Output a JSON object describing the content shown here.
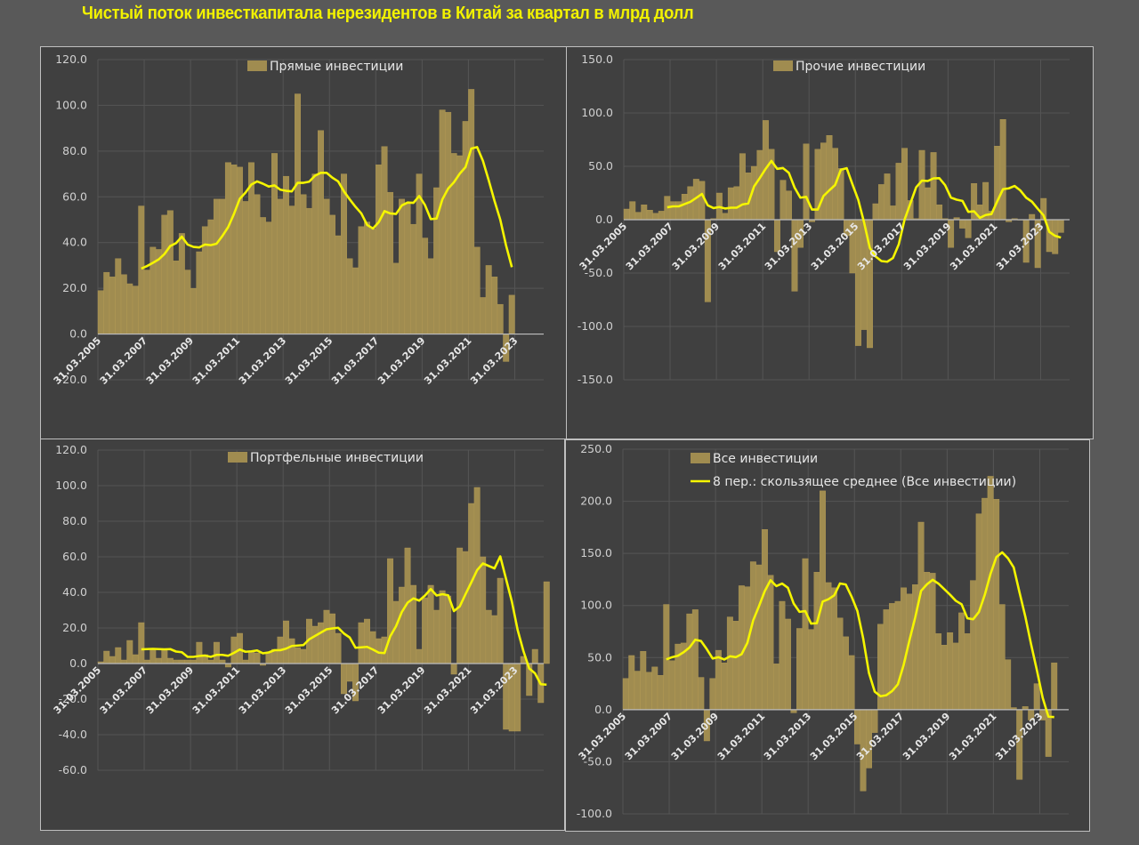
{
  "page": {
    "title": "Чистый поток инвесткапитала нерезидентов в Китай за квартал в млрд долл",
    "colors": {
      "background": "#595959",
      "panel": "#404040",
      "bar": "#a08c50",
      "line": "#f5f500",
      "grid": "#555555",
      "title": "#f2f200"
    }
  },
  "chart_data": [
    {
      "id": "direct",
      "type": "bar",
      "title": "",
      "legend": [
        "Прямые инвестиции"
      ],
      "legend_position": "top-center",
      "moving_average_period": 8,
      "ylim": [
        -20,
        120
      ],
      "yticks": [
        -20,
        0,
        20,
        40,
        60,
        80,
        100,
        120
      ],
      "ytick_labels": [
        "-20.0",
        "0.0",
        "20.0",
        "40.0",
        "60.0",
        "80.0",
        "100.0",
        "120.0"
      ],
      "xtick_labels": [
        "31.03.2005",
        "31.03.2007",
        "31.03.2009",
        "31.03.2011",
        "31.03.2013",
        "31.03.2015",
        "31.03.2017",
        "31.03.2019",
        "31.03.2021",
        "31.03.2023"
      ],
      "x_start": "31.03.2005",
      "frequency": "quarterly",
      "values": [
        19,
        27,
        25,
        33,
        26,
        22,
        21,
        56,
        28,
        38,
        37,
        52,
        54,
        32,
        44,
        28,
        20,
        36,
        47,
        50,
        59,
        59,
        75,
        74,
        73,
        58,
        75,
        61,
        51,
        49,
        79,
        59,
        69,
        56,
        105,
        61,
        55,
        70,
        89,
        59,
        52,
        43,
        70,
        33,
        29,
        47,
        49,
        46,
        74,
        82,
        62,
        31,
        59,
        57,
        48,
        70,
        42,
        33,
        64,
        98,
        97,
        79,
        78,
        93,
        107,
        38,
        16,
        30,
        25,
        13,
        -12,
        17
      ],
      "grid": true
    },
    {
      "id": "other",
      "type": "bar",
      "title": "",
      "legend": [
        "Прочие инвестиции"
      ],
      "legend_position": "top-center",
      "moving_average_period": 8,
      "ylim": [
        -150,
        150
      ],
      "yticks": [
        -150,
        -100,
        -50,
        0,
        50,
        100,
        150
      ],
      "ytick_labels": [
        "-150.0",
        "-100.0",
        "-50.0",
        "0.0",
        "50.0",
        "100.0",
        "150.0"
      ],
      "xtick_labels": [
        "31.03.2005",
        "31.03.2007",
        "31.03.2009",
        "31.03.2011",
        "31.03.2013",
        "31.03.2015",
        "31.03.2017",
        "31.03.2019",
        "31.03.2021",
        "31.03.2023"
      ],
      "x_start": "31.03.2005",
      "frequency": "quarterly",
      "values": [
        10,
        17,
        7,
        14,
        9,
        6,
        8,
        22,
        17,
        17,
        24,
        31,
        38,
        36,
        -77,
        1,
        25,
        6,
        30,
        31,
        62,
        44,
        50,
        65,
        93,
        66,
        -30,
        37,
        27,
        -67,
        -26,
        71,
        -2,
        66,
        72,
        79,
        67,
        48,
        -15,
        -50,
        -118,
        -103,
        -120,
        15,
        33,
        43,
        13,
        53,
        67,
        18,
        1,
        65,
        30,
        63,
        14,
        1,
        -26,
        2,
        -8,
        -17,
        34,
        14,
        35,
        8,
        69,
        94,
        -2,
        1,
        0,
        -40,
        5,
        -45,
        20,
        -30,
        -32,
        -12
      ],
      "grid": true
    },
    {
      "id": "portfolio",
      "type": "bar",
      "title": "",
      "legend": [
        "Портфельные инвестиции"
      ],
      "legend_position": "top-center",
      "moving_average_period": 8,
      "ylim": [
        -60,
        120
      ],
      "yticks": [
        -60,
        -40,
        -20,
        0,
        20,
        40,
        60,
        80,
        100,
        120
      ],
      "ytick_labels": [
        "-60.0",
        "-40.0",
        "-20.0",
        "0.0",
        "20.0",
        "40.0",
        "60.0",
        "80.0",
        "100.0",
        "120.0"
      ],
      "xtick_labels": [
        "31.03.2005",
        "31.03.2007",
        "31.03.2009",
        "31.03.2011",
        "31.03.2013",
        "31.03.2015",
        "31.03.2017",
        "31.03.2019",
        "31.03.2021",
        "31.03.2023"
      ],
      "x_start": "31.03.2005",
      "frequency": "quarterly",
      "values": [
        1,
        7,
        4,
        9,
        2,
        13,
        5,
        23,
        2,
        8,
        3,
        8,
        3,
        2,
        2,
        2,
        2,
        12,
        5,
        2,
        12,
        2,
        -2,
        15,
        17,
        2,
        7,
        6,
        -1,
        6,
        8,
        15,
        24,
        14,
        9,
        8,
        25,
        21,
        23,
        30,
        28,
        17,
        -17,
        -10,
        -21,
        23,
        25,
        18,
        14,
        15,
        59,
        35,
        43,
        65,
        44,
        8,
        37,
        44,
        30,
        41,
        38,
        -6,
        65,
        63,
        90,
        99,
        60,
        30,
        27,
        48,
        -37,
        -38,
        -38,
        4,
        -18,
        8,
        -22,
        46
      ],
      "grid": true
    },
    {
      "id": "all",
      "type": "bar",
      "title": "",
      "legend": [
        "Все инвестиции",
        "8 пер.: скользящее среднее (Все инвестиции)"
      ],
      "legend_position": "top-center",
      "moving_average_period": 8,
      "ylim": [
        -100,
        250
      ],
      "yticks": [
        -100,
        -50,
        0,
        50,
        100,
        150,
        200,
        250
      ],
      "ytick_labels": [
        "-100.0",
        "-50.0",
        "0.0",
        "50.0",
        "100.0",
        "150.0",
        "200.0",
        "250.0"
      ],
      "xtick_labels": [
        "31.03.2005",
        "31.03.2007",
        "31.03.2009",
        "31.03.2011",
        "31.03.2013",
        "31.03.2015",
        "31.03.2017",
        "31.03.2019",
        "31.03.2021",
        "31.03.2023"
      ],
      "x_start": "31.03.2005",
      "frequency": "quarterly",
      "values": [
        30,
        52,
        37,
        56,
        36,
        41,
        33,
        101,
        47,
        63,
        64,
        92,
        96,
        31,
        -30,
        30,
        57,
        45,
        89,
        85,
        119,
        118,
        142,
        139,
        173,
        129,
        44,
        104,
        87,
        -3,
        78,
        145,
        77,
        132,
        210,
        122,
        117,
        88,
        70,
        52,
        -33,
        -78,
        -56,
        -22,
        82,
        96,
        102,
        104,
        117,
        111,
        120,
        180,
        132,
        131,
        73,
        62,
        74,
        64,
        93,
        73,
        124,
        188,
        203,
        224,
        202,
        101,
        48,
        2,
        -67,
        3,
        -10,
        25,
        -10,
        -45,
        45
      ],
      "grid": true
    }
  ]
}
